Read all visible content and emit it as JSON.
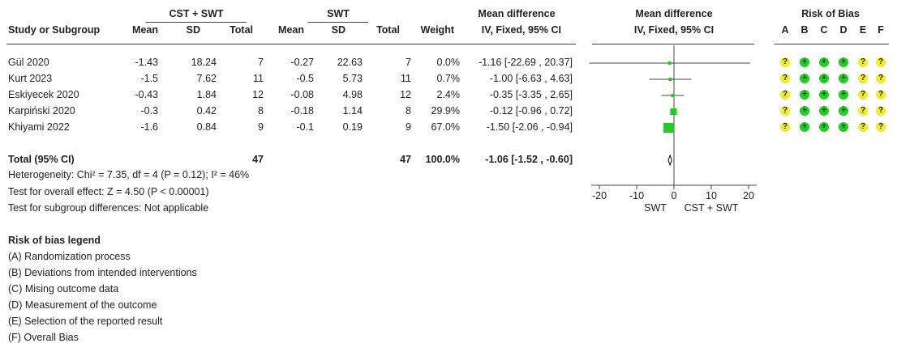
{
  "headers": {
    "group1": "CST + SWT",
    "group2": "SWT",
    "md_top": "Mean difference",
    "md_plot_top": "Mean difference",
    "rob_title": "Risk of Bias",
    "study": "Study or Subgroup",
    "mean1": "Mean",
    "sd1": "SD",
    "total1": "Total",
    "mean2": "Mean",
    "sd2": "SD",
    "total2": "Total",
    "weight": "Weight",
    "md_sub": "IV, Fixed, 95% CI",
    "md_plot_sub": "IV, Fixed, 95% CI",
    "rob_letters": [
      "A",
      "B",
      "C",
      "D",
      "E",
      "F"
    ]
  },
  "studies": [
    {
      "name": "Gül 2020",
      "mean1": "-1.43",
      "sd1": "18.24",
      "total1": "7",
      "mean2": "-0.27",
      "sd2": "22.63",
      "total2": "7",
      "weight": "0.0%",
      "ci": "-1.16 [-22.69 , 20.37]",
      "rob": [
        "?",
        "+",
        "+",
        "+",
        "?",
        "?"
      ]
    },
    {
      "name": "Kurt 2023",
      "mean1": "-1.5",
      "sd1": "7.62",
      "total1": "11",
      "mean2": "-0.5",
      "sd2": "5.73",
      "total2": "11",
      "weight": "0.7%",
      "ci": "-1.00 [-6.63 , 4.63]",
      "rob": [
        "?",
        "+",
        "+",
        "+",
        "?",
        "?"
      ]
    },
    {
      "name": "Eskiyecek 2020",
      "mean1": "-0.43",
      "sd1": "1.84",
      "total1": "12",
      "mean2": "-0.08",
      "sd2": "4.98",
      "total2": "12",
      "weight": "2.4%",
      "ci": "-0.35 [-3.35 , 2.65]",
      "rob": [
        "?",
        "+",
        "+",
        "+",
        "?",
        "?"
      ]
    },
    {
      "name": "Karpiński 2020",
      "mean1": "-0.3",
      "sd1": "0.42",
      "total1": "8",
      "mean2": "-0.18",
      "sd2": "1.14",
      "total2": "8",
      "weight": "29.9%",
      "ci": "-0.12 [-0.96 , 0.72]",
      "rob": [
        "?",
        "+",
        "+",
        "+",
        "?",
        "?"
      ]
    },
    {
      "name": "Khiyami 2022",
      "mean1": "-1.6",
      "sd1": "0.84",
      "total1": "9",
      "mean2": "-0.1",
      "sd2": "0.19",
      "total2": "9",
      "weight": "67.0%",
      "ci": "-1.50 [-2.06 , -0.94]",
      "rob": [
        "?",
        "+",
        "+",
        "+",
        "?",
        "?"
      ]
    }
  ],
  "total": {
    "label": "Total (95% CI)",
    "total1": "47",
    "total2": "47",
    "weight": "100.0%",
    "ci": "-1.06 [-1.52 , -0.60]"
  },
  "stats": {
    "heterogeneity": "Heterogeneity: Chi² = 7.35, df = 4 (P = 0.12); I² = 46%",
    "overall": "Test for overall effect: Z = 4.50 (P < 0.00001)",
    "subgroup": "Test for subgroup differences: Not applicable"
  },
  "legend": {
    "title": "Risk of bias legend",
    "items": [
      "(A) Randomization process",
      "(B) Deviations from intended interventions",
      "(C) Mising outcome data",
      "(D) Measurement of the outcome",
      "(E) Selection of the reported result",
      "(F) Overall Bias"
    ]
  },
  "colors": {
    "low": "#22cc22",
    "some": "#eeee22",
    "square": "#22cc22",
    "line": "#444444"
  },
  "chart_data": {
    "type": "forest",
    "x_ticks": [
      -20,
      -10,
      0,
      10,
      20
    ],
    "x_tick_labels": [
      "-20",
      "-10",
      "0",
      "10",
      "20"
    ],
    "xlim": [
      -20,
      20
    ],
    "favours_left": "SWT",
    "favours_right": "CST + SWT",
    "studies": [
      {
        "name": "Gül 2020",
        "md": -1.16,
        "lo": -22.69,
        "hi": 20.37,
        "weight": 0.0
      },
      {
        "name": "Kurt 2023",
        "md": -1.0,
        "lo": -6.63,
        "hi": 4.63,
        "weight": 0.7
      },
      {
        "name": "Eskiyecek 2020",
        "md": -0.35,
        "lo": -3.35,
        "hi": 2.65,
        "weight": 2.4
      },
      {
        "name": "Karpiński 2020",
        "md": -0.12,
        "lo": -0.96,
        "hi": 0.72,
        "weight": 29.9
      },
      {
        "name": "Khiyami 2022",
        "md": -1.5,
        "lo": -2.06,
        "hi": -0.94,
        "weight": 67.0
      }
    ],
    "pooled": {
      "md": -1.06,
      "lo": -1.52,
      "hi": -0.6
    }
  }
}
